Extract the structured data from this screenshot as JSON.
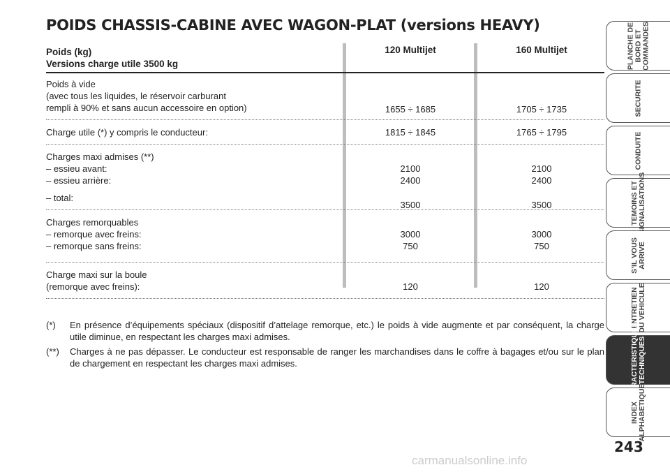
{
  "header": {
    "title": "POIDS CHASSIS-CABINE AVEC WAGON-PLAT (versions HEAVY)"
  },
  "table": {
    "header_lines": [
      "Poids (kg)",
      "Versions charge utile 3500 kg"
    ],
    "columns": [
      "120 Multijet",
      "160 Multijet"
    ],
    "rows": [
      {
        "lines": [
          {
            "label": "Poids à vide"
          },
          {
            "label": "(avec tous les liquides, le réservoir carburant"
          },
          {
            "label": "rempli à 90% et sans aucun accessoire en option)",
            "values": [
              "1655 ÷ 1685",
              "1705 ÷ 1735"
            ]
          }
        ]
      },
      {
        "lines": [
          {
            "label": "Charge utile (*) y compris le conducteur:",
            "values": [
              "1815 ÷ 1845",
              "1765 ÷ 1795"
            ]
          }
        ]
      },
      {
        "lines": [
          {
            "label": "Charges maxi admises (**)"
          },
          {
            "label": "– essieu avant:",
            "values": [
              "2100",
              "2100"
            ]
          },
          {
            "label": "– essieu arrière:",
            "values": [
              "2400",
              "2400"
            ]
          },
          {
            "label": "– total:",
            "values": [
              "3500",
              "3500"
            ]
          }
        ]
      },
      {
        "lines": [
          {
            "label": "Charges remorquables"
          },
          {
            "label": "– remorque avec freins:",
            "values": [
              "3000",
              "3000"
            ]
          },
          {
            "label": "– remorque sans freins:",
            "values": [
              "750",
              "750"
            ]
          }
        ]
      },
      {
        "lines": [
          {
            "label": "Charge maxi sur la boule"
          },
          {
            "label": "(remorque avec freins):",
            "values": [
              "120",
              "120"
            ]
          }
        ]
      }
    ]
  },
  "footnotes": [
    {
      "marker": "(*)",
      "text": "En présence d’équipements spéciaux (dispositif d’attelage remorque, etc.) le poids à vide augmente et par conséquent, la charge utile diminue, en respectant les charges maxi admises."
    },
    {
      "marker": "(**)",
      "text": "Charges à ne pas dépasser. Le conducteur est responsable de ranger les marchandises dans le coffre à bagages et/ou sur le plan de chargement en respectant les charges maxi admises."
    }
  ],
  "side_tabs": [
    [
      "PLANCHE DE",
      "BORD ET",
      "COMMANDES"
    ],
    [
      "SECURITE"
    ],
    [
      "CONDUITE"
    ],
    [
      "TEMOINS ET",
      "SIGNALISATIONS"
    ],
    [
      "S’IL VOUS",
      "ARRIVE"
    ],
    [
      "ENTRETIEN",
      "DU VEHICULE"
    ],
    [
      "CARACTERISTIQUES",
      "TECHNIQUES"
    ],
    [
      "INDEX",
      "ALPHABETIQUE"
    ]
  ],
  "active_tab": 6,
  "page_number": "243",
  "watermark": "carmanualsonline.info"
}
